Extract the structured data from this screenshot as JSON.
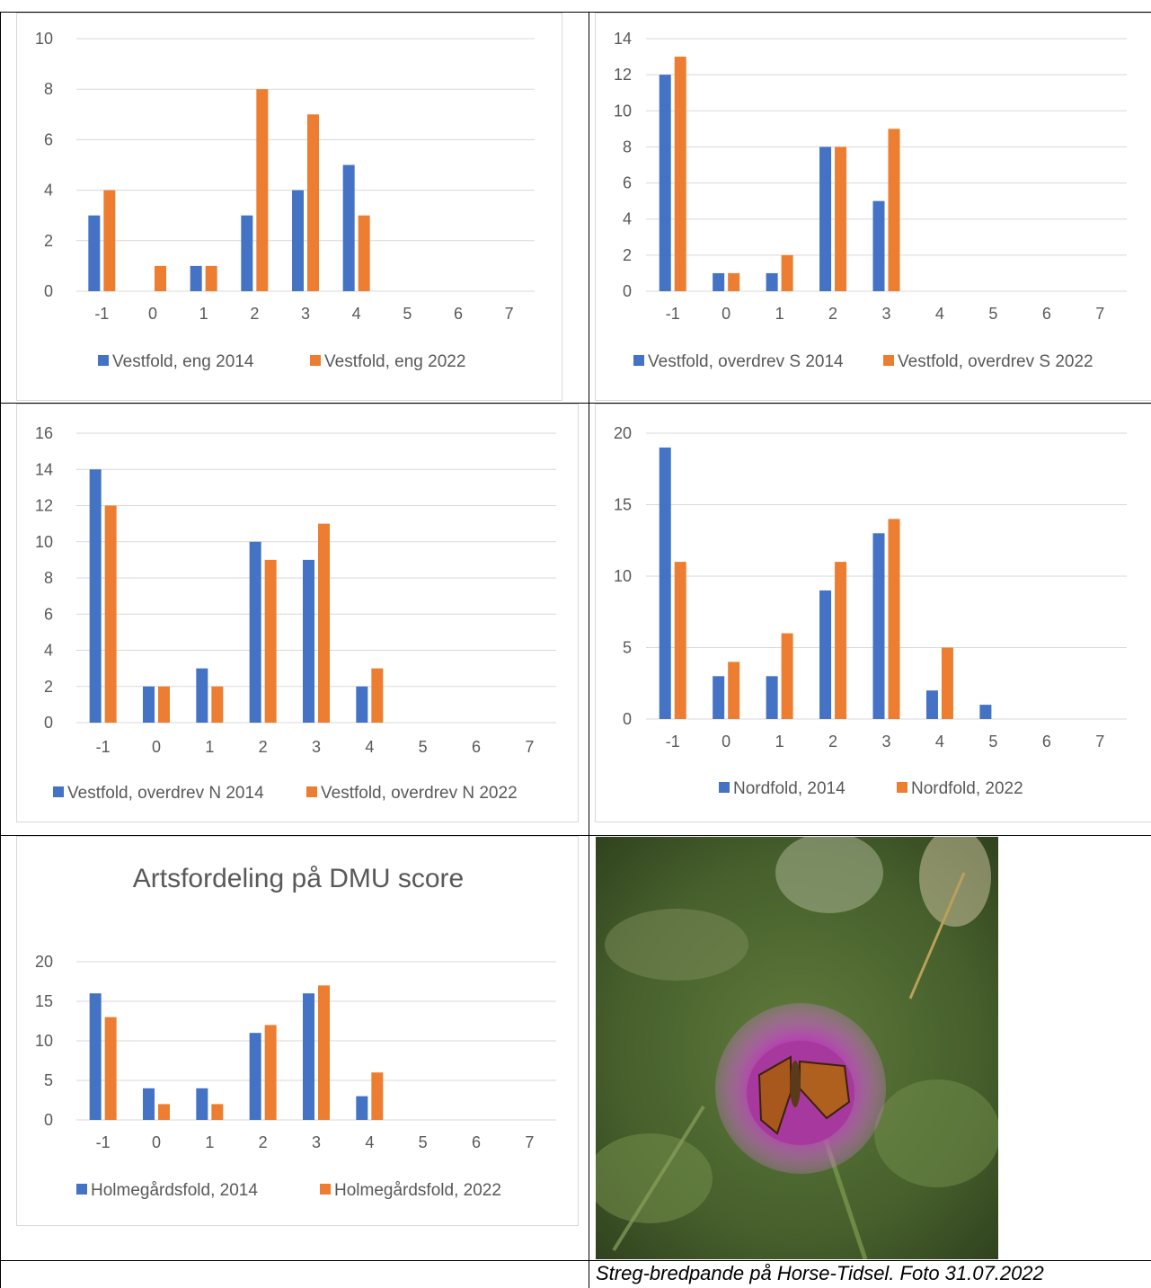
{
  "colors": {
    "series_2014": "#4472c4",
    "series_2022": "#ed7d31",
    "axis_text": "#595959",
    "gridline": "#d9d9d9"
  },
  "chart_data": [
    {
      "type": "bar",
      "title": "",
      "categories": [
        "-1",
        "0",
        "1",
        "2",
        "3",
        "4",
        "5",
        "6",
        "7"
      ],
      "ylim": [
        0,
        10
      ],
      "yticks": [
        "0",
        "2",
        "4",
        "6",
        "8",
        "10"
      ],
      "grid": true,
      "legend": "bottom",
      "series": [
        {
          "name": "Vestfold, eng 2014",
          "values": [
            3,
            0,
            1,
            3,
            4,
            5,
            0,
            0,
            0
          ]
        },
        {
          "name": "Vestfold, eng 2022",
          "values": [
            4,
            1,
            1,
            8,
            7,
            3,
            0,
            0,
            0
          ]
        }
      ]
    },
    {
      "type": "bar",
      "title": "",
      "categories": [
        "-1",
        "0",
        "1",
        "2",
        "3",
        "4",
        "5",
        "6",
        "7"
      ],
      "ylim": [
        0,
        14
      ],
      "yticks": [
        "0",
        "2",
        "4",
        "6",
        "8",
        "10",
        "12",
        "14"
      ],
      "grid": true,
      "legend": "bottom",
      "series": [
        {
          "name": "Vestfold, overdrev S 2014",
          "values": [
            12,
            1,
            1,
            8,
            5,
            0,
            0,
            0,
            0
          ]
        },
        {
          "name": "Vestfold, overdrev S 2022",
          "values": [
            13,
            1,
            2,
            8,
            9,
            0,
            0,
            0,
            0
          ]
        }
      ]
    },
    {
      "type": "bar",
      "title": "",
      "categories": [
        "-1",
        "0",
        "1",
        "2",
        "3",
        "4",
        "5",
        "6",
        "7"
      ],
      "ylim": [
        0,
        16
      ],
      "yticks": [
        "0",
        "2",
        "4",
        "6",
        "8",
        "10",
        "12",
        "14",
        "16"
      ],
      "grid": true,
      "legend": "bottom",
      "series": [
        {
          "name": "Vestfold, overdrev N 2014",
          "values": [
            14,
            2,
            3,
            10,
            9,
            2,
            0,
            0,
            0
          ]
        },
        {
          "name": "Vestfold, overdrev N 2022",
          "values": [
            12,
            2,
            2,
            9,
            11,
            3,
            0,
            0,
            0
          ]
        }
      ]
    },
    {
      "type": "bar",
      "title": "",
      "categories": [
        "-1",
        "0",
        "1",
        "2",
        "3",
        "4",
        "5",
        "6",
        "7"
      ],
      "ylim": [
        0,
        20
      ],
      "yticks": [
        "0",
        "5",
        "10",
        "15",
        "20"
      ],
      "grid": true,
      "legend": "bottom",
      "series": [
        {
          "name": "Nordfold, 2014",
          "values": [
            19,
            3,
            3,
            9,
            13,
            2,
            1,
            0,
            0
          ]
        },
        {
          "name": "Nordfold, 2022",
          "values": [
            11,
            4,
            6,
            11,
            14,
            5,
            0,
            0,
            0
          ]
        }
      ]
    },
    {
      "type": "bar",
      "title": "Artsfordeling på DMU score",
      "categories": [
        "-1",
        "0",
        "1",
        "2",
        "3",
        "4",
        "5",
        "6",
        "7"
      ],
      "ylim": [
        0,
        20
      ],
      "yticks": [
        "0",
        "5",
        "10",
        "15",
        "20"
      ],
      "grid": true,
      "legend": "bottom",
      "series": [
        {
          "name": "Holmegårdsfold, 2014",
          "values": [
            16,
            4,
            4,
            11,
            16,
            3,
            0,
            0,
            0
          ]
        },
        {
          "name": "Holmegårdsfold, 2022",
          "values": [
            13,
            2,
            2,
            12,
            17,
            6,
            0,
            0,
            0
          ]
        }
      ]
    }
  ],
  "photo": {
    "caption": "Streg-bredpande på Horse-Tidsel. Foto 31.07.2022"
  }
}
